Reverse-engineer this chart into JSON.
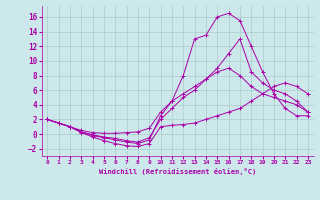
{
  "background_color": "#cce8ea",
  "grid_color": "#aacccc",
  "line_color": "#aa00aa",
  "xlim": [
    -0.5,
    23.5
  ],
  "ylim": [
    -3.0,
    17.5
  ],
  "xticks": [
    0,
    1,
    2,
    3,
    4,
    5,
    6,
    7,
    8,
    9,
    10,
    11,
    12,
    13,
    14,
    15,
    16,
    17,
    18,
    19,
    20,
    21,
    22,
    23
  ],
  "yticks": [
    -2,
    0,
    2,
    4,
    6,
    8,
    10,
    12,
    14,
    16
  ],
  "xlabel": "Windchill (Refroidissement éolien,°C)",
  "curves": [
    {
      "x": [
        0,
        1,
        2,
        3,
        4,
        5,
        6,
        7,
        8,
        9,
        10,
        11,
        12,
        13,
        14,
        15,
        16,
        17,
        18,
        19,
        20,
        21,
        22,
        23
      ],
      "y": [
        2.0,
        1.5,
        1.0,
        0.2,
        -0.4,
        -0.9,
        -1.3,
        -1.6,
        -1.7,
        -1.3,
        1.0,
        1.2,
        1.3,
        1.5,
        2.0,
        2.5,
        3.0,
        3.5,
        4.5,
        5.5,
        6.5,
        7.0,
        6.5,
        5.5
      ]
    },
    {
      "x": [
        0,
        1,
        2,
        3,
        4,
        5,
        6,
        7,
        8,
        9,
        10,
        11,
        12,
        13,
        14,
        15,
        16,
        17,
        18,
        19,
        20,
        21,
        22,
        23
      ],
      "y": [
        2.0,
        1.5,
        1.0,
        0.3,
        -0.2,
        -0.5,
        -0.8,
        -1.1,
        -1.3,
        -0.8,
        2.5,
        4.5,
        8.0,
        13.0,
        13.5,
        16.0,
        16.5,
        15.5,
        12.0,
        8.5,
        5.5,
        3.5,
        2.5,
        2.5
      ]
    },
    {
      "x": [
        0,
        1,
        2,
        3,
        4,
        5,
        6,
        7,
        8,
        9,
        10,
        11,
        12,
        13,
        14,
        15,
        16,
        17,
        18,
        19,
        20,
        21,
        22,
        23
      ],
      "y": [
        2.0,
        1.5,
        1.0,
        0.3,
        -0.1,
        -0.4,
        -0.6,
        -0.9,
        -1.1,
        -0.5,
        2.0,
        3.5,
        5.0,
        6.0,
        7.5,
        8.5,
        9.0,
        8.0,
        6.5,
        5.5,
        5.0,
        4.5,
        4.0,
        3.0
      ]
    },
    {
      "x": [
        0,
        1,
        2,
        3,
        4,
        5,
        6,
        7,
        8,
        9,
        10,
        11,
        12,
        13,
        14,
        15,
        16,
        17,
        18,
        19,
        20,
        21,
        22,
        23
      ],
      "y": [
        2.0,
        1.5,
        1.0,
        0.5,
        0.2,
        0.1,
        0.1,
        0.2,
        0.3,
        0.8,
        3.0,
        4.5,
        5.5,
        6.5,
        7.5,
        9.0,
        11.0,
        13.0,
        8.5,
        7.0,
        6.0,
        5.5,
        4.5,
        3.0
      ]
    }
  ]
}
